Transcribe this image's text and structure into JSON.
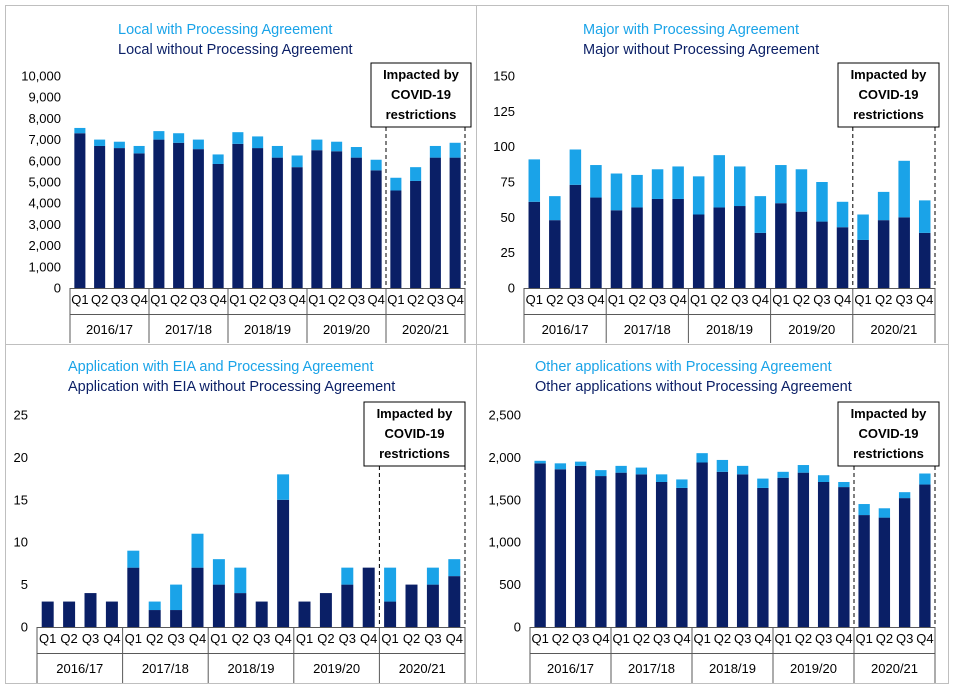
{
  "colors": {
    "with_agreement": "#1aa3e8",
    "without_agreement": "#0a1f66",
    "border": "#bfbfbf"
  },
  "quarters": [
    "Q1",
    "Q2",
    "Q3",
    "Q4",
    "Q1",
    "Q2",
    "Q3",
    "Q4",
    "Q1",
    "Q2",
    "Q3",
    "Q4",
    "Q1",
    "Q2",
    "Q3",
    "Q4",
    "Q1",
    "Q2",
    "Q3",
    "Q4"
  ],
  "years": [
    "2016/17",
    "2017/18",
    "2018/19",
    "2019/20",
    "2020/21"
  ],
  "annotation": {
    "line1": "Impacted by",
    "line2": "COVID-19",
    "line3": "restrictions"
  },
  "chart_data": [
    {
      "type": "bar",
      "legend": [
        "Local with Processing Agreement",
        "Local without Processing Agreement"
      ],
      "ylim": [
        0,
        10000
      ],
      "yticks": [
        "0",
        "1,000",
        "2,000",
        "3,000",
        "4,000",
        "5,000",
        "6,000",
        "7,000",
        "8,000",
        "9,000",
        "10,000"
      ],
      "series": [
        {
          "name": "Local without Processing Agreement",
          "values": [
            7300,
            6700,
            6600,
            6350,
            7000,
            6850,
            6550,
            5850,
            6800,
            6600,
            6150,
            5700,
            6500,
            6450,
            6150,
            5550,
            4600,
            5050,
            6150,
            6150
          ]
        },
        {
          "name": "Local with Processing Agreement",
          "values": [
            250,
            300,
            300,
            350,
            400,
            450,
            450,
            450,
            550,
            550,
            550,
            550,
            500,
            450,
            500,
            500,
            600,
            650,
            550,
            700
          ]
        }
      ]
    },
    {
      "type": "bar",
      "legend": [
        "Major with Processing Agreement",
        "Major without Processing Agreement"
      ],
      "ylim": [
        0,
        150
      ],
      "yticks": [
        "0",
        "25",
        "50",
        "75",
        "100",
        "125",
        "150"
      ],
      "series": [
        {
          "name": "Major without Processing Agreement",
          "values": [
            61,
            48,
            73,
            64,
            55,
            57,
            63,
            63,
            52,
            57,
            58,
            39,
            60,
            54,
            47,
            43,
            34,
            48,
            50,
            39
          ]
        },
        {
          "name": "Major with Processing Agreement",
          "values": [
            30,
            17,
            25,
            23,
            26,
            23,
            21,
            23,
            27,
            37,
            28,
            26,
            27,
            30,
            28,
            18,
            18,
            20,
            40,
            23
          ]
        }
      ]
    },
    {
      "type": "bar",
      "legend": [
        "Application with EIA and Processing Agreement",
        "Application with EIA without Processing Agreement"
      ],
      "ylim": [
        0,
        25
      ],
      "yticks": [
        "0",
        "5",
        "10",
        "15",
        "20",
        "25"
      ],
      "series": [
        {
          "name": "Application with EIA without Processing Agreement",
          "values": [
            3,
            3,
            4,
            3,
            7,
            2,
            2,
            7,
            5,
            4,
            3,
            15,
            3,
            4,
            5,
            7,
            3,
            5,
            5,
            6
          ]
        },
        {
          "name": "Application with EIA and Processing Agreement",
          "values": [
            0,
            0,
            0,
            0,
            2,
            1,
            3,
            4,
            3,
            3,
            0,
            3,
            0,
            0,
            2,
            0,
            4,
            0,
            2,
            2
          ]
        }
      ]
    },
    {
      "type": "bar",
      "legend": [
        "Other applications with Processing Agreement",
        "Other applications without Processing Agreement"
      ],
      "ylim": [
        0,
        2500
      ],
      "yticks": [
        "0",
        "500",
        "1,000",
        "1,500",
        "2,000",
        "2,500"
      ],
      "series": [
        {
          "name": "Other applications without Processing Agreement",
          "values": [
            1930,
            1860,
            1900,
            1780,
            1820,
            1800,
            1710,
            1640,
            1940,
            1830,
            1800,
            1640,
            1760,
            1820,
            1710,
            1650,
            1320,
            1290,
            1520,
            1680
          ]
        },
        {
          "name": "Other applications with Processing Agreement",
          "values": [
            30,
            70,
            50,
            70,
            80,
            80,
            90,
            100,
            110,
            140,
            100,
            110,
            70,
            90,
            80,
            60,
            130,
            110,
            70,
            130
          ]
        }
      ]
    }
  ]
}
